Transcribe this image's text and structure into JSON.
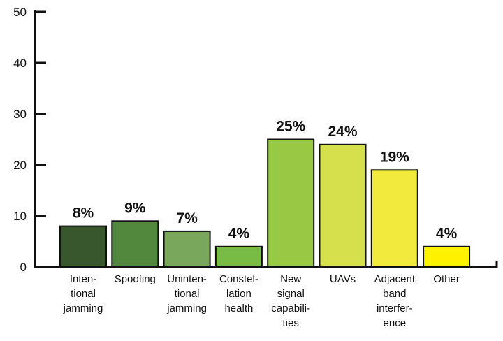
{
  "chart_data": {
    "type": "bar",
    "title": "",
    "xlabel": "",
    "ylabel": "",
    "ylim": [
      0,
      50
    ],
    "yticks": [
      0,
      10,
      20,
      30,
      40,
      50
    ],
    "grid": false,
    "categories": [
      [
        "Inten-",
        "tional",
        "jamming"
      ],
      [
        "Spoofing"
      ],
      [
        "Uninten-",
        "tional",
        "jamming"
      ],
      [
        "Constel-",
        "lation",
        "health"
      ],
      [
        "New",
        "signal",
        "capabili-",
        "ties"
      ],
      [
        "UAVs"
      ],
      [
        "Adjacent",
        "band",
        "interfer-",
        "ence"
      ],
      [
        "Other"
      ]
    ],
    "values": [
      8,
      9,
      7,
      4,
      25,
      24,
      19,
      4
    ],
    "labels": [
      "8%",
      "9%",
      "7%",
      "4%",
      "25%",
      "24%",
      "19%",
      "4%"
    ],
    "colors": [
      "#39572c",
      "#52883e",
      "#79a85c",
      "#79bc45",
      "#97c945",
      "#d6e04c",
      "#f2ea3d",
      "#fff200"
    ]
  }
}
